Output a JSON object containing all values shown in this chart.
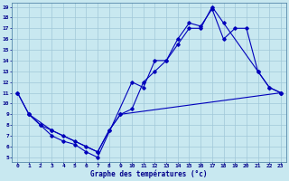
{
  "background_color": "#c8e8f0",
  "grid_color": "#a0c8d8",
  "line_color": "#0000bb",
  "xlim": [
    -0.5,
    23.5
  ],
  "ylim": [
    4.6,
    19.4
  ],
  "xticks": [
    0,
    1,
    2,
    3,
    4,
    5,
    6,
    7,
    8,
    9,
    10,
    11,
    12,
    13,
    14,
    15,
    16,
    17,
    18,
    19,
    20,
    21,
    22,
    23
  ],
  "yticks": [
    5,
    6,
    7,
    8,
    9,
    10,
    11,
    12,
    13,
    14,
    15,
    16,
    17,
    18,
    19
  ],
  "xlabel": "Graphe des températures (°c)",
  "line1_x": [
    0,
    1,
    2,
    3,
    4,
    5,
    6,
    7,
    10,
    11,
    12,
    13,
    14,
    15,
    16,
    17,
    18,
    21,
    22,
    23
  ],
  "line1_y": [
    11,
    9,
    8,
    7,
    6.5,
    6.2,
    5.5,
    5.0,
    12,
    11.5,
    14,
    14,
    15.5,
    17,
    17,
    19,
    17.5,
    13,
    11.5,
    11
  ],
  "line2_x": [
    0,
    1,
    2,
    3,
    4,
    5,
    6,
    7,
    8,
    9,
    10,
    11,
    12,
    13,
    14,
    15,
    16,
    17,
    18,
    19,
    20,
    21,
    22,
    23
  ],
  "line2_y": [
    11,
    9,
    8,
    7.5,
    7,
    6.5,
    6,
    5.5,
    7.5,
    9,
    9.5,
    12,
    13,
    14,
    16,
    17.5,
    17.2,
    18.8,
    16,
    17,
    17,
    13,
    11.5,
    11
  ],
  "line3_x": [
    1,
    3,
    7,
    8,
    9,
    23
  ],
  "line3_y": [
    9,
    7.5,
    5.5,
    7.5,
    9,
    11
  ]
}
